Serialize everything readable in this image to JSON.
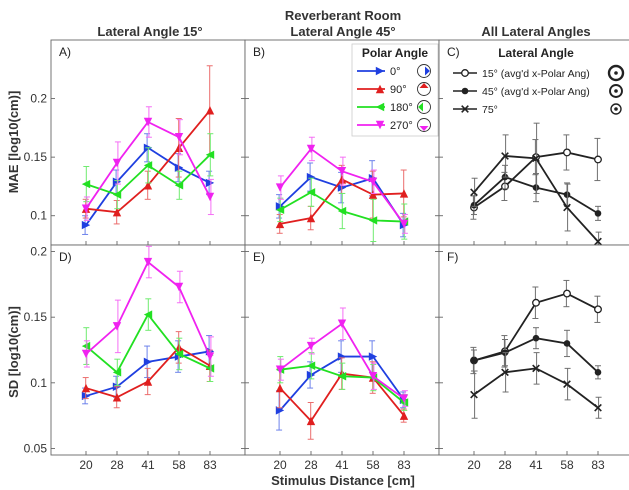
{
  "figure": {
    "title": "Reverberant Room",
    "column_titles": [
      "Lateral Angle 15°",
      "Lateral Angle 45°",
      "All Lateral Angles"
    ],
    "xlabel": "Stimulus Distance [cm]",
    "row_labels": [
      "MAE [log10(cm)]",
      "SD [log10(cm)]"
    ],
    "panel_letters": [
      "A)",
      "B)",
      "C)",
      "D)",
      "E)",
      "F)"
    ]
  },
  "legends": {
    "polar": {
      "title": "Polar Angle",
      "items": [
        {
          "label": "0°",
          "color": "#1f3fe0",
          "marker": "tri-right"
        },
        {
          "label": "90°",
          "color": "#e01f1f",
          "marker": "tri-up"
        },
        {
          "label": "180°",
          "color": "#22e022",
          "marker": "tri-left"
        },
        {
          "label": "270°",
          "color": "#f022f0",
          "marker": "tri-down"
        }
      ]
    },
    "lateral": {
      "title": "Lateral Angle",
      "items": [
        {
          "label": "15° (avg'd x-Polar Ang)",
          "color": "#222222",
          "marker": "circle-open"
        },
        {
          "label": "45° (avg'd x-Polar Ang)",
          "color": "#222222",
          "marker": "circle-filled"
        },
        {
          "label": "75°",
          "color": "#222222",
          "marker": "x"
        }
      ]
    }
  },
  "colors": {
    "polar_0": "#1f3fe0",
    "polar_90": "#e01f1f",
    "polar_180": "#22e022",
    "polar_270": "#f022f0",
    "lateral": "#222222"
  },
  "chart_data": [
    {
      "panel": "A)",
      "type": "line",
      "title": "Lateral Angle 15°",
      "categories": [
        "20",
        "28",
        "41",
        "58",
        "83"
      ],
      "xlabel": "",
      "ylabel": "MAE [log10(cm)]",
      "ylim": [
        0.075,
        0.25
      ],
      "yticks": [
        0.1,
        0.15,
        0.2
      ],
      "series": [
        {
          "name": "0°",
          "marker": "tri-right",
          "color": "#1f3fe0",
          "values": [
            0.092,
            0.129,
            0.158,
            0.141,
            0.128
          ],
          "err": [
            0.008,
            0.01,
            0.012,
            0.012,
            0.01
          ]
        },
        {
          "name": "90°",
          "marker": "tri-up",
          "color": "#e01f1f",
          "values": [
            0.106,
            0.103,
            0.126,
            0.158,
            0.19
          ],
          "err": [
            0.008,
            0.01,
            0.012,
            0.025,
            0.038
          ]
        },
        {
          "name": "180°",
          "marker": "tri-left",
          "color": "#22e022",
          "values": [
            0.127,
            0.118,
            0.143,
            0.126,
            0.152
          ],
          "err": [
            0.015,
            0.012,
            0.015,
            0.012,
            0.018
          ]
        },
        {
          "name": "270°",
          "marker": "tri-down",
          "color": "#f022f0",
          "values": [
            0.106,
            0.145,
            0.18,
            0.167,
            0.116
          ],
          "err": [
            0.01,
            0.018,
            0.013,
            0.015,
            0.015
          ]
        }
      ]
    },
    {
      "panel": "B)",
      "type": "line",
      "title": "Lateral Angle 45°",
      "categories": [
        "20",
        "28",
        "41",
        "58",
        "83"
      ],
      "xlabel": "",
      "ylabel": "",
      "ylim": [
        0.075,
        0.25
      ],
      "yticks": [
        0.1,
        0.15,
        0.2
      ],
      "series": [
        {
          "name": "0°",
          "marker": "tri-right",
          "color": "#1f3fe0",
          "values": [
            0.108,
            0.133,
            0.124,
            0.132,
            0.092
          ],
          "err": [
            0.01,
            0.012,
            0.013,
            0.015,
            0.01
          ]
        },
        {
          "name": "90°",
          "marker": "tri-up",
          "color": "#e01f1f",
          "values": [
            0.093,
            0.098,
            0.131,
            0.118,
            0.119
          ],
          "err": [
            0.008,
            0.01,
            0.012,
            0.02,
            0.02
          ]
        },
        {
          "name": "180°",
          "marker": "tri-left",
          "color": "#22e022",
          "values": [
            0.105,
            0.12,
            0.104,
            0.096,
            0.095
          ],
          "err": [
            0.01,
            0.012,
            0.015,
            0.018,
            0.015
          ]
        },
        {
          "name": "270°",
          "marker": "tri-down",
          "color": "#f022f0",
          "values": [
            0.124,
            0.157,
            0.138,
            0.129,
            0.093
          ],
          "err": [
            0.01,
            0.01,
            0.012,
            0.01,
            0.008
          ]
        }
      ]
    },
    {
      "panel": "C)",
      "type": "line",
      "title": "All Lateral Angles",
      "categories": [
        "20",
        "28",
        "41",
        "58",
        "83"
      ],
      "xlabel": "",
      "ylabel": "",
      "ylim": [
        0.075,
        0.25
      ],
      "yticks": [
        0.1,
        0.15,
        0.2
      ],
      "series": [
        {
          "name": "15° (avg'd x-Polar Ang)",
          "marker": "circle-open",
          "color": "#222222",
          "values": [
            0.107,
            0.125,
            0.15,
            0.154,
            0.148
          ],
          "err": [
            0.01,
            0.012,
            0.015,
            0.015,
            0.018
          ]
        },
        {
          "name": "45° (avg'd x-Polar Ang)",
          "marker": "circle-filled",
          "color": "#222222",
          "values": [
            0.109,
            0.133,
            0.124,
            0.118,
            0.102
          ],
          "err": [
            0.008,
            0.01,
            0.012,
            0.01,
            0.006
          ]
        },
        {
          "name": "75°",
          "marker": "x",
          "color": "#222222",
          "values": [
            0.12,
            0.151,
            0.149,
            0.107,
            0.078
          ],
          "err": [
            0.012,
            0.018,
            0.03,
            0.02,
            0.008
          ]
        }
      ]
    },
    {
      "panel": "D)",
      "type": "line",
      "title": "",
      "categories": [
        "20",
        "28",
        "41",
        "58",
        "83"
      ],
      "xlabel": "Stimulus Distance [cm]",
      "ylabel": "SD [log10(cm)]",
      "ylim": [
        0.045,
        0.205
      ],
      "yticks": [
        0.05,
        0.1,
        0.15,
        0.2
      ],
      "series": [
        {
          "name": "0°",
          "marker": "tri-right",
          "color": "#1f3fe0",
          "values": [
            0.09,
            0.097,
            0.116,
            0.12,
            0.124
          ],
          "err": [
            0.006,
            0.008,
            0.012,
            0.012,
            0.012
          ]
        },
        {
          "name": "90°",
          "marker": "tri-up",
          "color": "#e01f1f",
          "values": [
            0.096,
            0.089,
            0.101,
            0.127,
            0.113
          ],
          "err": [
            0.008,
            0.008,
            0.01,
            0.012,
            0.012
          ]
        },
        {
          "name": "180°",
          "marker": "tri-left",
          "color": "#22e022",
          "values": [
            0.128,
            0.108,
            0.152,
            0.122,
            0.111
          ],
          "err": [
            0.014,
            0.01,
            0.012,
            0.012,
            0.01
          ]
        },
        {
          "name": "270°",
          "marker": "tri-down",
          "color": "#f022f0",
          "values": [
            0.122,
            0.143,
            0.192,
            0.173,
            0.12
          ],
          "err": [
            0.01,
            0.02,
            0.012,
            0.012,
            0.015
          ]
        }
      ]
    },
    {
      "panel": "E)",
      "type": "line",
      "title": "",
      "categories": [
        "20",
        "28",
        "41",
        "58",
        "83"
      ],
      "xlabel": "Stimulus Distance [cm]",
      "ylabel": "",
      "ylim": [
        0.045,
        0.205
      ],
      "yticks": [
        0.05,
        0.1,
        0.15,
        0.2
      ],
      "series": [
        {
          "name": "0°",
          "marker": "tri-right",
          "color": "#1f3fe0",
          "values": [
            0.079,
            0.106,
            0.12,
            0.12,
            0.087
          ],
          "err": [
            0.015,
            0.01,
            0.012,
            0.012,
            0.006
          ]
        },
        {
          "name": "90°",
          "marker": "tri-up",
          "color": "#e01f1f",
          "values": [
            0.096,
            0.071,
            0.107,
            0.104,
            0.075
          ],
          "err": [
            0.015,
            0.014,
            0.012,
            0.012,
            0.005
          ]
        },
        {
          "name": "180°",
          "marker": "tri-left",
          "color": "#22e022",
          "values": [
            0.11,
            0.113,
            0.105,
            0.104,
            0.085
          ],
          "err": [
            0.01,
            0.01,
            0.01,
            0.01,
            0.006
          ]
        },
        {
          "name": "270°",
          "marker": "tri-down",
          "color": "#f022f0",
          "values": [
            0.11,
            0.128,
            0.145,
            0.105,
            0.088
          ],
          "err": [
            0.008,
            0.006,
            0.012,
            0.01,
            0.006
          ]
        }
      ]
    },
    {
      "panel": "F)",
      "type": "line",
      "title": "",
      "categories": [
        "20",
        "28",
        "41",
        "58",
        "83"
      ],
      "xlabel": "Stimulus Distance [cm]",
      "ylabel": "",
      "ylim": [
        0.045,
        0.205
      ],
      "yticks": [
        0.05,
        0.1,
        0.15,
        0.2
      ],
      "series": [
        {
          "name": "15° (avg'd x-Polar Ang)",
          "marker": "circle-open",
          "color": "#222222",
          "values": [
            0.117,
            0.124,
            0.161,
            0.168,
            0.156
          ],
          "err": [
            0.01,
            0.012,
            0.012,
            0.01,
            0.01
          ]
        },
        {
          "name": "45° (avg'd x-Polar Ang)",
          "marker": "circle-filled",
          "color": "#222222",
          "values": [
            0.117,
            0.123,
            0.134,
            0.13,
            0.108
          ],
          "err": [
            0.008,
            0.01,
            0.008,
            0.01,
            0.005
          ]
        },
        {
          "name": "75°",
          "marker": "x",
          "color": "#222222",
          "values": [
            0.091,
            0.108,
            0.111,
            0.099,
            0.081
          ],
          "err": [
            0.018,
            0.015,
            0.012,
            0.012,
            0.008
          ]
        }
      ]
    }
  ]
}
